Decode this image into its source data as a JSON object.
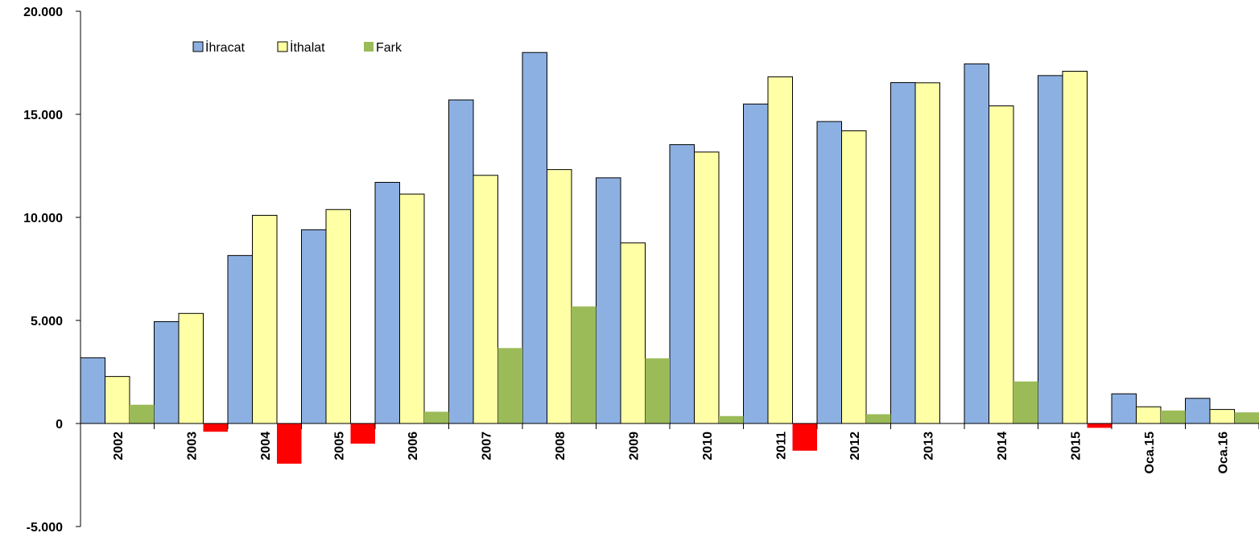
{
  "chart_data": {
    "type": "bar",
    "title": "",
    "xlabel": "",
    "ylabel": "",
    "categories": [
      "2002",
      "2003",
      "2004",
      "2005",
      "2006",
      "2007",
      "2008",
      "2009",
      "2010",
      "2011",
      "2012",
      "2013",
      "2014",
      "2015",
      "Oca.15",
      "Oca.16"
    ],
    "series": [
      {
        "name": "İhracat",
        "color": "#8DB0E2",
        "values": [
          3190,
          4940,
          8150,
          9400,
          11700,
          15700,
          18000,
          11920,
          13530,
          15500,
          14650,
          16540,
          17450,
          16880,
          1440,
          1220
        ]
      },
      {
        "name": "İthalat",
        "color": "#FFFFA6",
        "values": [
          2280,
          5340,
          10100,
          10380,
          11130,
          12040,
          12320,
          8760,
          13170,
          16820,
          14200,
          16530,
          15410,
          17090,
          810,
          680
        ]
      },
      {
        "name": "Fark",
        "color": "#9BBB59",
        "negative_color": "#FF0000",
        "values": [
          910,
          -400,
          -1950,
          -980,
          570,
          3660,
          5680,
          3160,
          360,
          -1320,
          450,
          10,
          2040,
          -210,
          630,
          540
        ]
      }
    ],
    "ylim": [
      -5000,
      20000
    ],
    "y_ticks": [
      -5000,
      0,
      5000,
      10000,
      15000,
      20000
    ],
    "y_tick_labels": [
      "-5.000",
      "0",
      "5.000",
      "10.000",
      "15.000",
      "20.000"
    ],
    "grid": false,
    "legend_position": "top-left"
  }
}
